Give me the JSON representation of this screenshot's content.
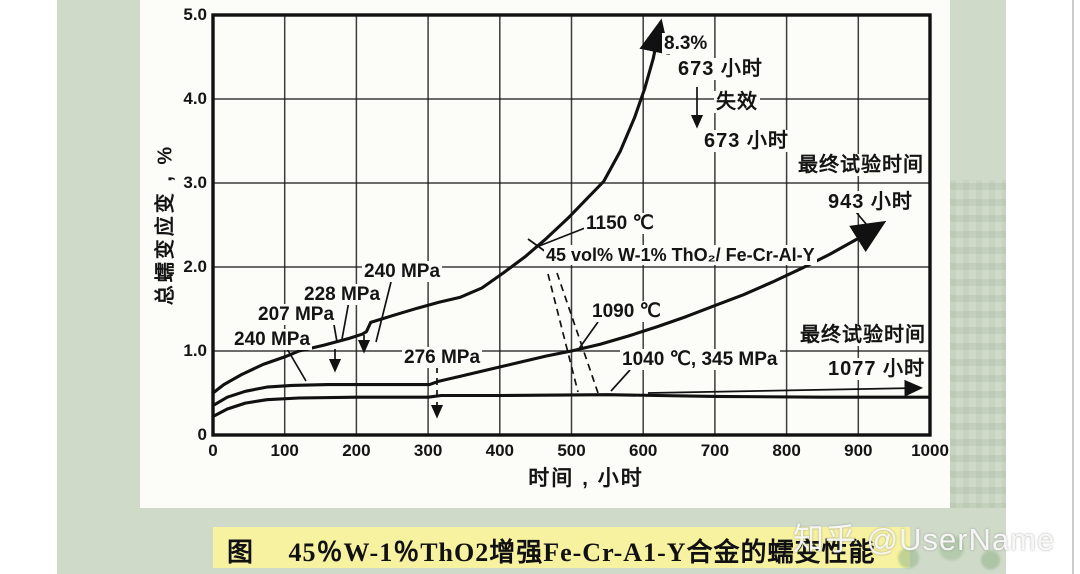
{
  "page": {
    "caption": "图　 45％W-1％ThO2增强Fe-Cr-A1-Y合金的蠕变性能",
    "watermark": "知乎 @UserName"
  },
  "chart_data": {
    "type": "line",
    "title": "",
    "xlabel": "时间 , 小时",
    "ylabel": "总蠕变应变 , %",
    "xlim": [
      0,
      1000
    ],
    "ylim": [
      0,
      5
    ],
    "grid": true,
    "xticks": [
      0,
      100,
      200,
      300,
      400,
      500,
      600,
      700,
      800,
      900,
      1000
    ],
    "xtick_labels": [
      "0",
      "100",
      "200",
      "300",
      "400",
      "500",
      "600",
      "700",
      "800",
      "900",
      "1000"
    ],
    "yticks": [
      0,
      1,
      2,
      3,
      4,
      5
    ],
    "ytick_labels": [
      "0",
      "1.0",
      "2.0",
      "3.0",
      "4.0",
      "5.0"
    ],
    "series": [
      {
        "name": "1150 ℃",
        "end_note": "失效 673 小时 (8.3%)",
        "arrow_end": true,
        "points": [
          [
            0,
            0.5
          ],
          [
            15,
            0.6
          ],
          [
            40,
            0.72
          ],
          [
            70,
            0.84
          ],
          [
            100,
            0.93
          ],
          [
            120,
            1.0
          ],
          [
            155,
            1.07
          ],
          [
            190,
            1.15
          ],
          [
            208,
            1.2
          ],
          [
            214,
            1.23
          ],
          [
            220,
            1.34
          ],
          [
            250,
            1.42
          ],
          [
            285,
            1.51
          ],
          [
            315,
            1.58
          ],
          [
            345,
            1.64
          ],
          [
            375,
            1.75
          ],
          [
            405,
            1.93
          ],
          [
            435,
            2.12
          ],
          [
            465,
            2.34
          ],
          [
            495,
            2.58
          ],
          [
            520,
            2.8
          ],
          [
            545,
            3.02
          ],
          [
            568,
            3.38
          ],
          [
            588,
            3.78
          ],
          [
            602,
            4.12
          ],
          [
            614,
            4.48
          ],
          [
            623,
            4.85
          ]
        ]
      },
      {
        "name": "1090 ℃",
        "end_note": "最终试验时间 943 小时",
        "arrow_end": true,
        "points": [
          [
            0,
            0.35
          ],
          [
            20,
            0.45
          ],
          [
            45,
            0.52
          ],
          [
            75,
            0.57
          ],
          [
            110,
            0.59
          ],
          [
            160,
            0.6
          ],
          [
            220,
            0.6
          ],
          [
            302,
            0.6
          ],
          [
            315,
            0.64
          ],
          [
            345,
            0.7
          ],
          [
            385,
            0.78
          ],
          [
            425,
            0.86
          ],
          [
            465,
            0.94
          ],
          [
            500,
            1.0
          ],
          [
            540,
            1.08
          ],
          [
            580,
            1.18
          ],
          [
            620,
            1.29
          ],
          [
            660,
            1.41
          ],
          [
            700,
            1.54
          ],
          [
            740,
            1.67
          ],
          [
            780,
            1.82
          ],
          [
            820,
            1.98
          ],
          [
            860,
            2.15
          ],
          [
            900,
            2.34
          ],
          [
            928,
            2.49
          ]
        ]
      },
      {
        "name": "1040 ℃, 345 MPa",
        "end_note": "最终试验时间 1077 小时",
        "arrow_end": false,
        "points": [
          [
            0,
            0.22
          ],
          [
            20,
            0.31
          ],
          [
            45,
            0.38
          ],
          [
            75,
            0.42
          ],
          [
            120,
            0.44
          ],
          [
            200,
            0.45
          ],
          [
            300,
            0.45
          ],
          [
            318,
            0.47
          ],
          [
            400,
            0.47
          ],
          [
            550,
            0.48
          ],
          [
            700,
            0.46
          ],
          [
            850,
            0.45
          ],
          [
            1000,
            0.45
          ]
        ]
      }
    ],
    "annotations": {
      "failure_strain": "8.3%",
      "failure_time": "673 小时",
      "failure_label": "失效",
      "failure_time2": "673 小时",
      "final_test_label_top": "最终试验时间",
      "final_test_time_top": "943  小时",
      "curve1_temp": "1150 ℃",
      "composite_label": "45 vol% W-1% ThO₂/ Fe-Cr-Al-Y",
      "curve2_temp": "1090 ℃",
      "curve3_label": "1040 ℃, 345 MPa",
      "final_test_label_bottom": "最终试验时间",
      "final_test_time_bottom": "1077  小时",
      "stress_240_upper": "240 MPa",
      "stress_228": "228 MPa",
      "stress_207": "207 MPa",
      "stress_240_lower": "240 MPa",
      "stress_276": "276 MPa"
    }
  }
}
